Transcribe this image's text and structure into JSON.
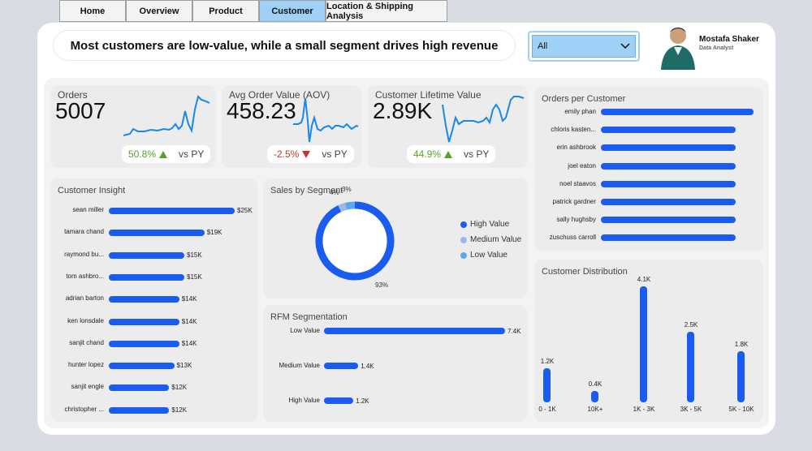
{
  "tabs": [
    {
      "label": "Home"
    },
    {
      "label": "Overview"
    },
    {
      "label": "Product"
    },
    {
      "label": "Customer"
    },
    {
      "label": "Location & Shipping Analysis"
    }
  ],
  "headline": "Most customers are low-value, while a small segment drives high revenue",
  "filter": {
    "selected": "All"
  },
  "profile": {
    "name": "Mostafa Shaker",
    "role": "Data Analyst"
  },
  "kpis": [
    {
      "title": "Orders",
      "value": "5007",
      "delta": "50.8%",
      "direction": "up",
      "vs": "vs PY"
    },
    {
      "title": "Avg Order Value (AOV)",
      "value": "458.23",
      "delta": "-2.5%",
      "direction": "down",
      "vs": "vs PY"
    },
    {
      "title": "Customer Lifetime Value",
      "value": "2.89K",
      "delta": "44.9%",
      "direction": "up",
      "vs": "vs PY"
    }
  ],
  "colors": {
    "accent": "#1a5cf0",
    "medium": "#9bb9e8",
    "low": "#5aa9f0",
    "positive": "#5aa02c",
    "negative": "#c0392b"
  },
  "chart_data": [
    {
      "type": "bar",
      "orientation": "horizontal",
      "title": "Customer Insight",
      "categories": [
        "sean miller",
        "tamara chand",
        "raymond bu...",
        "tom ashbro...",
        "adrian barton",
        "ken lonsdale",
        "sanjit chand",
        "hunter lopez",
        "sanjit engle",
        "christopher ..."
      ],
      "values": [
        25,
        19,
        15,
        15,
        14,
        14,
        14,
        13,
        12,
        12
      ],
      "labels": [
        "$25K",
        "$19K",
        "$15K",
        "$15K",
        "$14K",
        "$14K",
        "$14K",
        "$13K",
        "$12K",
        "$12K"
      ],
      "unit": "K USD"
    },
    {
      "type": "pie",
      "title": "Sales by Segment",
      "categories": [
        "High Value",
        "Medium Value",
        "Low Value"
      ],
      "values": [
        93,
        3,
        4
      ],
      "labels": [
        "93%",
        "3%",
        "4%"
      ]
    },
    {
      "type": "bar",
      "orientation": "horizontal",
      "title": "RFM Segmentation",
      "categories": [
        "Low Value",
        "Medium Value",
        "High Value"
      ],
      "values": [
        7.4,
        1.4,
        1.2
      ],
      "labels": [
        "7.4K",
        "1.4K",
        "1.2K"
      ],
      "unit": "K"
    },
    {
      "type": "bar",
      "orientation": "horizontal",
      "title": "Orders per Customer",
      "categories": [
        "emily phan",
        "chloris kasten...",
        "erin ashbrook",
        "joel eaton",
        "noel staavos",
        "patrick gardner",
        "sally hughsby",
        "zuschuss carroll"
      ],
      "values": [
        17,
        15,
        15,
        15,
        15,
        15,
        15,
        15
      ]
    },
    {
      "type": "bar",
      "orientation": "vertical",
      "title": "Customer Distribution",
      "categories": [
        "0 - 1K",
        "10K+",
        "1K - 3K",
        "3K - 5K",
        "5K - 10K"
      ],
      "values": [
        1.2,
        0.4,
        4.1,
        2.5,
        1.8
      ],
      "labels": [
        "1.2K",
        "0.4K",
        "4.1K",
        "2.5K",
        "1.8K"
      ],
      "unit": "K"
    }
  ]
}
